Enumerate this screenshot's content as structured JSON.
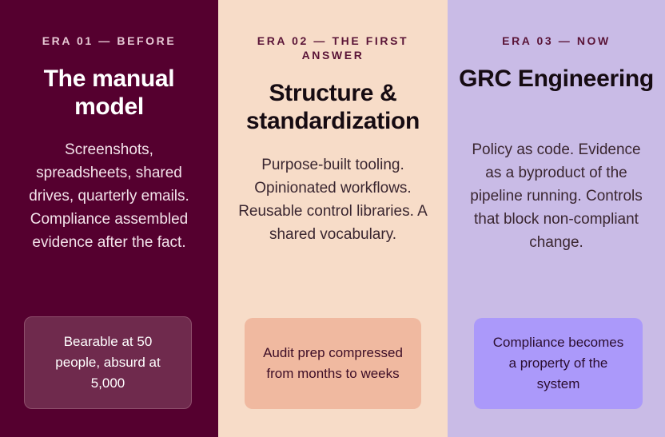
{
  "eras": [
    {
      "eyebrow": "ERA 01 — BEFORE",
      "title": "The manual model",
      "body": "Screenshots, spreadsheets, shared drives, quarterly emails. Compliance assembled evidence after the fact.",
      "callout": "Bearable at 50 people, absurd at 5,000"
    },
    {
      "eyebrow": "ERA 02 — THE FIRST ANSWER",
      "title": "Structure & standardization",
      "body": "Purpose-built tooling. Opinionated workflows. Reusable control libraries. A shared vocabulary.",
      "callout": "Audit prep compressed from months to weeks"
    },
    {
      "eyebrow": "ERA 03 — NOW",
      "title": "GRC Engineering",
      "body": "Policy as code. Evidence as a byproduct of the pipeline running. Controls that block non-compliant change.",
      "callout": "Compliance becomes a property of the system"
    }
  ],
  "colors": {
    "era1_bg": "#55002f",
    "era2_bg": "#f7dcc8",
    "era3_bg": "#c9bbe6",
    "era1_callout": "#6f2a4d",
    "era2_callout": "#f0b9a0",
    "era3_callout": "#ab99fa"
  }
}
